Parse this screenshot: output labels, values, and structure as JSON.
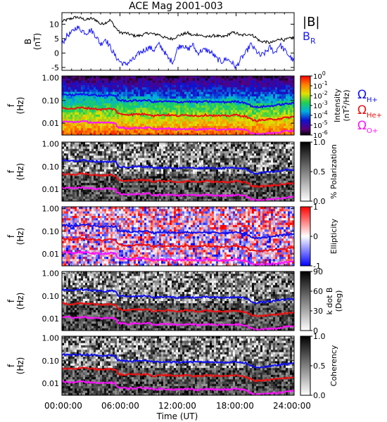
{
  "title": "ACE Mag 2001-003",
  "xaxis": {
    "label": "Time (UT)",
    "ticks": [
      "00:00:00",
      "06:00:00",
      "12:00:00",
      "18:00:00",
      "24:00:00"
    ],
    "tick_hours": [
      0,
      6,
      12,
      18,
      24
    ],
    "range_hours": [
      0,
      24
    ]
  },
  "colors": {
    "B_total": "#000000",
    "B_R": "#1a1aff",
    "H": "#1010ee",
    "He": "#ee1010",
    "O": "#ff10ff",
    "frame": "#000000"
  },
  "chart_data": [
    {
      "type": "line",
      "panel": "b-field",
      "ylabel_line1": "B",
      "ylabel_line2": "(nT)",
      "ylim": [
        -6,
        14
      ],
      "yticks": [
        "10",
        "5",
        "0",
        "-5"
      ],
      "ytick_values": [
        10,
        5,
        0,
        -5
      ],
      "series": [
        {
          "name": "|B|",
          "color": "#000000",
          "x": [
            0,
            0.5,
            1,
            1.5,
            2,
            2.5,
            3,
            3.5,
            4,
            4.5,
            5,
            5.5,
            6,
            6.5,
            7,
            7.5,
            8,
            8.5,
            9,
            9.5,
            10,
            10.5,
            11,
            11.5,
            12,
            12.5,
            13,
            13.5,
            14,
            14.5,
            15,
            15.5,
            16,
            16.5,
            17,
            17.5,
            18,
            18.5,
            19,
            19.5,
            20,
            20.5,
            21,
            21.5,
            22,
            22.5,
            23,
            23.5,
            24
          ],
          "y": [
            11,
            11.5,
            12,
            12.5,
            12,
            11.5,
            12,
            11.5,
            10,
            10.5,
            11.5,
            9,
            7,
            7,
            6.5,
            6,
            6,
            6.5,
            7,
            6.5,
            6.5,
            5.5,
            5,
            5,
            6,
            6.5,
            7,
            6,
            6.5,
            6,
            5.5,
            6,
            6,
            5.5,
            6,
            7,
            7,
            6,
            6.5,
            6.5,
            5.5,
            4,
            4,
            3.5,
            4,
            5,
            4.5,
            5,
            5.5
          ]
        },
        {
          "name": "B",
          "subscript": "R",
          "color": "#1a1aff",
          "x": [
            0,
            0.5,
            1,
            1.5,
            2,
            2.5,
            3,
            3.5,
            4,
            4.5,
            5,
            5.5,
            6,
            6.5,
            7,
            7.5,
            8,
            8.5,
            9,
            9.5,
            10,
            10.5,
            11,
            11.5,
            12,
            12.5,
            13,
            13.5,
            14,
            14.5,
            15,
            15.5,
            16,
            16.5,
            17,
            17.5,
            18,
            18.5,
            19,
            19.5,
            20,
            20.5,
            21,
            21.5,
            22,
            22.5,
            23,
            23.5,
            24
          ],
          "y": [
            3,
            6,
            7,
            9,
            8,
            7,
            8,
            6,
            3,
            5,
            2,
            -1,
            -3,
            -4,
            -3,
            -2,
            0,
            1,
            2,
            1,
            3,
            1,
            -2,
            -3,
            2,
            3,
            1,
            3,
            0,
            1,
            1,
            0,
            -2,
            -3,
            -2,
            -3,
            -5,
            -2,
            0,
            3,
            1,
            -1,
            0,
            2,
            0,
            3,
            1,
            -1,
            -3
          ]
        }
      ]
    },
    {
      "type": "heatmap",
      "panel": "power-spectrum",
      "ylabel_line1": "f",
      "ylabel_line2": "(Hz)",
      "ylim": [
        0.003,
        1.2
      ],
      "yscale": "log",
      "yticks": [
        "1.00",
        "0.10",
        "0.01"
      ],
      "colorbar": {
        "label_line1": "Intensity",
        "label_line2": "(nT",
        "label_sup": "2",
        "label_end": "/Hz)",
        "ticks": [
          {
            "base": "10",
            "exp": "0"
          },
          {
            "base": "10",
            "exp": "-1"
          },
          {
            "base": "10",
            "exp": "-2"
          },
          {
            "base": "10",
            "exp": "-3"
          },
          {
            "base": "10",
            "exp": "-4"
          },
          {
            "base": "10",
            "exp": "-5"
          },
          {
            "base": "10",
            "exp": "-6"
          }
        ],
        "range": [
          -6,
          0
        ],
        "scale": "log"
      },
      "legend": [
        {
          "symbol": "Ω",
          "subscript": "H+",
          "color": "#1010ee"
        },
        {
          "symbol": "Ω",
          "subscript": "He+",
          "color": "#ee1010"
        },
        {
          "symbol": "Ω",
          "subscript": "O+",
          "color": "#ff10ff"
        }
      ]
    },
    {
      "type": "heatmap",
      "panel": "polarization",
      "ylabel_line1": "f",
      "ylabel_line2": "(Hz)",
      "ylim": [
        0.003,
        1.2
      ],
      "yscale": "log",
      "yticks": [
        "1.00",
        "0.10",
        "0.01"
      ],
      "colorbar": {
        "label": "% Polarization",
        "ticks": [
          "1.0",
          "0.5",
          "0.0"
        ],
        "range": [
          0,
          1
        ]
      }
    },
    {
      "type": "heatmap",
      "panel": "ellipticity",
      "ylabel_line1": "f",
      "ylabel_line2": "(Hz)",
      "ylim": [
        0.003,
        1.2
      ],
      "yscale": "log",
      "yticks": [
        "1.00",
        "0.10",
        "0.01"
      ],
      "colorbar": {
        "label": "Ellipticity",
        "ticks": [
          "1",
          "0",
          "-1"
        ],
        "range": [
          -1,
          1
        ]
      }
    },
    {
      "type": "heatmap",
      "panel": "k-dot-b",
      "ylabel_line1": "f",
      "ylabel_line2": "(Hz)",
      "ylim": [
        0.003,
        1.2
      ],
      "yscale": "log",
      "yticks": [
        "1.00",
        "0.10",
        "0.01"
      ],
      "colorbar": {
        "label_line1": "k dot B",
        "label_line2": "(Deg)",
        "ticks": [
          "90",
          "60",
          "30",
          "0"
        ],
        "range": [
          0,
          90
        ]
      }
    },
    {
      "type": "heatmap",
      "panel": "coherency",
      "ylabel_line1": "f",
      "ylabel_line2": "(Hz)",
      "ylim": [
        0.003,
        1.2
      ],
      "yscale": "log",
      "yticks": [
        "1.00",
        "0.10",
        "0.01"
      ],
      "colorbar": {
        "label": "Coherency",
        "ticks": [
          "1.0",
          "0.5",
          "0.0"
        ],
        "range": [
          0,
          1
        ]
      }
    }
  ],
  "gyrofrequency_lines": {
    "x": [
      0,
      1,
      2,
      3,
      4,
      5,
      5.6,
      5.7,
      6,
      7,
      8,
      9,
      9.5,
      10,
      11,
      12,
      13,
      14,
      15,
      16,
      17,
      18,
      19,
      19.5,
      20,
      21,
      22,
      23,
      24
    ],
    "H": [
      0.19,
      0.17,
      0.19,
      0.18,
      0.16,
      0.17,
      0.16,
      0.11,
      0.1,
      0.095,
      0.1,
      0.1,
      0.085,
      0.09,
      0.09,
      0.085,
      0.09,
      0.085,
      0.09,
      0.085,
      0.085,
      0.09,
      0.08,
      0.06,
      0.05,
      0.055,
      0.06,
      0.07,
      0.075
    ],
    "He": [
      0.048,
      0.043,
      0.048,
      0.045,
      0.04,
      0.043,
      0.04,
      0.028,
      0.025,
      0.024,
      0.025,
      0.025,
      0.021,
      0.023,
      0.023,
      0.021,
      0.023,
      0.021,
      0.023,
      0.021,
      0.021,
      0.023,
      0.02,
      0.015,
      0.013,
      0.014,
      0.015,
      0.017,
      0.019
    ],
    "O": [
      0.012,
      0.011,
      0.012,
      0.011,
      0.01,
      0.011,
      0.01,
      0.007,
      0.0063,
      0.006,
      0.0063,
      0.0063,
      0.0053,
      0.0057,
      0.0057,
      0.0053,
      0.0057,
      0.0053,
      0.0057,
      0.0053,
      0.0053,
      0.0057,
      0.005,
      0.0038,
      0.0033,
      0.0035,
      0.0037,
      0.0043,
      0.0047
    ]
  }
}
